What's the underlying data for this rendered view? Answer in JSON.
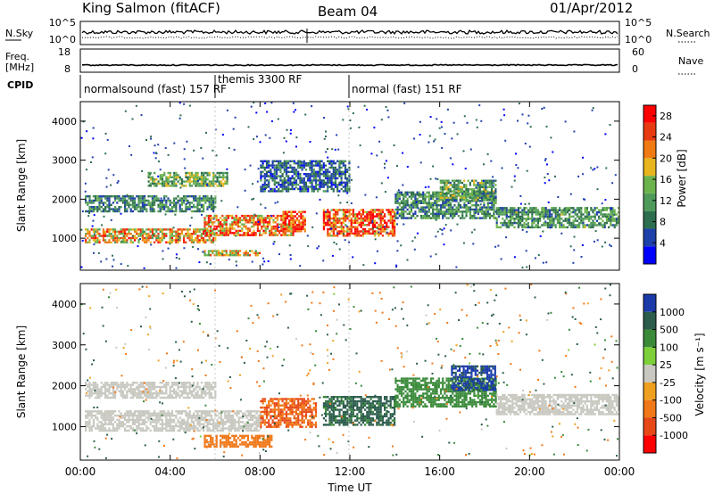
{
  "header": {
    "radar": "King Salmon (fitACF)",
    "beam": "Beam 04",
    "date": "01/Apr/2012"
  },
  "noise_panel": {
    "left_label": "N.Sky",
    "right_label": "N.Search",
    "left_ticks": [
      "10^5",
      "10^0"
    ],
    "right_ticks": [
      "10^5",
      "10^0"
    ]
  },
  "freq_panel": {
    "left_label_line1": "Freq.",
    "left_label_line2": "[MHz]",
    "right_label": "Nave",
    "left_ticks": [
      "18",
      "8"
    ],
    "right_ticks": [
      "60",
      "0"
    ]
  },
  "cpid": {
    "label": "CPID",
    "segments": [
      {
        "text": "normalsound (fast) 157 RF",
        "start_hour": 0
      },
      {
        "text": "themis 3300 RF",
        "start_hour": 6
      },
      {
        "text": "normal (fast) 151 RF",
        "start_hour": 12
      }
    ]
  },
  "x_axis": {
    "label": "Time UT",
    "ticks": [
      "00:00",
      "04:00",
      "08:00",
      "12:00",
      "16:00",
      "20:00",
      "00:00"
    ],
    "range_hours": [
      0,
      24
    ]
  },
  "power_panel": {
    "ylabel": "Slant Range [km]",
    "yticks": [
      "1000",
      "2000",
      "3000",
      "4000"
    ],
    "colorbar_label": "Power [dB]",
    "colorbar_ticks": [
      "4",
      "8",
      "12",
      "16",
      "20",
      "24",
      "28"
    ]
  },
  "velocity_panel": {
    "ylabel": "Slant Range [km]",
    "yticks": [
      "1000",
      "2000",
      "3000",
      "4000"
    ],
    "colorbar_label": "Velocity [m s⁻¹]",
    "colorbar_ticks": [
      "1000",
      "500",
      "100",
      "25",
      "-25",
      "-100",
      "-500",
      "-1000"
    ]
  },
  "colors": {
    "power_scale": [
      "#0000ff",
      "#1e40aa",
      "#2d6e4e",
      "#4f9a5a",
      "#6db34d",
      "#e8b51e",
      "#f07a14",
      "#e83a10",
      "#ff0000"
    ],
    "velocity_scale": [
      "#1a3aaa",
      "#2b5c4c",
      "#3a8a3a",
      "#7dd03a",
      "#c8c8c0",
      "#f0a020",
      "#f07818",
      "#e84818",
      "#ff0000"
    ]
  },
  "chart_data": [
    {
      "type": "heatmap",
      "title": "Power [dB]",
      "xlabel": "Time UT",
      "ylabel": "Slant Range [km]",
      "xlim": [
        0,
        24
      ],
      "ylim": [
        180,
        4500
      ],
      "zlim": [
        0,
        30
      ],
      "regions": [
        {
          "t0": 0.2,
          "t1": 6.0,
          "r0": 900,
          "r1": 1250,
          "value": 20
        },
        {
          "t0": 0.2,
          "t1": 6.0,
          "r0": 1700,
          "r1": 2100,
          "value": 9
        },
        {
          "t0": 3.0,
          "t1": 6.5,
          "r0": 2350,
          "r1": 2700,
          "value": 13
        },
        {
          "t0": 5.5,
          "t1": 9.5,
          "r0": 1100,
          "r1": 1600,
          "value": 22
        },
        {
          "t0": 5.5,
          "t1": 8.0,
          "r0": 550,
          "r1": 700,
          "value": 18
        },
        {
          "t0": 9.0,
          "t1": 10.0,
          "r0": 1200,
          "r1": 1700,
          "value": 26
        },
        {
          "t0": 10.8,
          "t1": 14.0,
          "r0": 1050,
          "r1": 1750,
          "value": 25
        },
        {
          "t0": 14.0,
          "t1": 18.5,
          "r0": 1500,
          "r1": 2200,
          "value": 10
        },
        {
          "t0": 16.0,
          "t1": 18.5,
          "r0": 2000,
          "r1": 2500,
          "value": 12
        },
        {
          "t0": 18.5,
          "t1": 24.0,
          "r0": 1300,
          "r1": 1800,
          "value": 11
        },
        {
          "t0": 8.0,
          "t1": 12.0,
          "r0": 2200,
          "r1": 3000,
          "value": 7
        }
      ]
    },
    {
      "type": "heatmap",
      "title": "Velocity [m s⁻¹]",
      "xlabel": "Time UT",
      "ylabel": "Slant Range [km]",
      "xlim": [
        0,
        24
      ],
      "ylim": [
        180,
        4500
      ],
      "regions": [
        {
          "t0": 0.2,
          "t1": 8.0,
          "r0": 900,
          "r1": 1400,
          "value": 0
        },
        {
          "t0": 0.2,
          "t1": 6.0,
          "r0": 1700,
          "r1": 2100,
          "value": 0
        },
        {
          "t0": 5.5,
          "t1": 8.5,
          "r0": 500,
          "r1": 800,
          "value": -300
        },
        {
          "t0": 8.0,
          "t1": 10.5,
          "r0": 1000,
          "r1": 1700,
          "value": -500
        },
        {
          "t0": 10.8,
          "t1": 14.0,
          "r0": 1050,
          "r1": 1750,
          "value": 120
        },
        {
          "t0": 14.0,
          "t1": 18.5,
          "r0": 1500,
          "r1": 2200,
          "value": 50
        },
        {
          "t0": 16.5,
          "t1": 18.5,
          "r0": 1900,
          "r1": 2500,
          "value": 600
        },
        {
          "t0": 18.5,
          "t1": 24.0,
          "r0": 1300,
          "r1": 1800,
          "value": 0
        }
      ]
    }
  ]
}
